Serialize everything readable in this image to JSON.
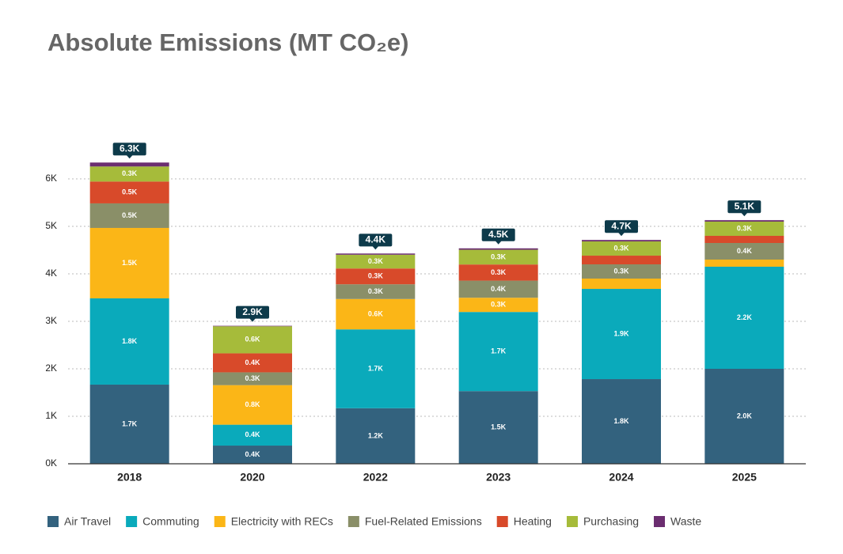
{
  "chart_data": {
    "type": "stacked_bar",
    "title": "Absolute Emissions (MT CO₂e)",
    "categories": [
      "2018",
      "2020",
      "2022",
      "2023",
      "2024",
      "2025"
    ],
    "series": [
      {
        "name": "Air Travel",
        "color": "#33627e",
        "values": [
          1667,
          383,
          1170,
          1530,
          1783,
          2000
        ],
        "value_labels": [
          "1.7K",
          "0.4K",
          "1.2K",
          "1.5K",
          "1.8K",
          "2.0K"
        ]
      },
      {
        "name": "Commuting",
        "color": "#0aaabb",
        "values": [
          1817,
          440,
          1660,
          1667,
          1900,
          2150
        ],
        "value_labels": [
          "1.8K",
          "0.4K",
          "1.7K",
          "1.7K",
          "1.9K",
          "2.2K"
        ]
      },
      {
        "name": "Electricity with RECs",
        "color": "#fbb617",
        "values": [
          1483,
          833,
          640,
          300,
          217,
          150
        ],
        "value_labels": [
          "1.5K",
          "0.8K",
          "0.6K",
          "0.3K",
          null,
          null
        ]
      },
      {
        "name": "Fuel-Related Emissions",
        "color": "#8a8f68",
        "values": [
          517,
          270,
          310,
          360,
          300,
          350
        ],
        "value_labels": [
          "0.5K",
          "0.3K",
          "0.3K",
          "0.4K",
          "0.3K",
          "0.4K"
        ]
      },
      {
        "name": "Heating",
        "color": "#d84a2a",
        "values": [
          460,
          400,
          333,
          340,
          183,
          150
        ],
        "value_labels": [
          "0.5K",
          "0.4K",
          "0.3K",
          "0.3K",
          null,
          null
        ]
      },
      {
        "name": "Purchasing",
        "color": "#a6bb3a",
        "values": [
          317,
          570,
          290,
          310,
          300,
          300
        ],
        "value_labels": [
          "0.3K",
          "0.6K",
          "0.3K",
          "0.3K",
          "0.3K",
          "0.3K"
        ]
      },
      {
        "name": "Waste",
        "color": "#6b2d70",
        "values": [
          83,
          10,
          25,
          30,
          30,
          30
        ],
        "value_labels": [
          null,
          null,
          null,
          null,
          null,
          null
        ]
      }
    ],
    "totals": [
      6344,
      2906,
      4428,
      4537,
      4713,
      5130
    ],
    "total_labels": [
      "6.3K",
      "2.9K",
      "4.4K",
      "4.5K",
      "4.7K",
      "5.1K"
    ],
    "ylim": [
      0,
      6600
    ],
    "yticks": [
      {
        "value": 0,
        "label": "0K"
      },
      {
        "value": 1000,
        "label": "1K"
      },
      {
        "value": 2000,
        "label": "2K"
      },
      {
        "value": 3000,
        "label": "3K"
      },
      {
        "value": 4000,
        "label": "4K"
      },
      {
        "value": 5000,
        "label": "5K"
      },
      {
        "value": 6000,
        "label": "6K"
      }
    ],
    "grid": true
  }
}
